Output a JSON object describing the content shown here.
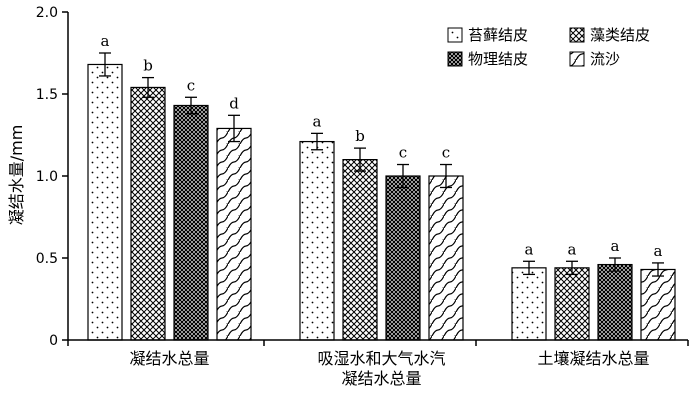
{
  "chart_data": {
    "type": "bar",
    "ylabel": "凝结水量/mm",
    "ylim": [
      0,
      2.0
    ],
    "yticks": [
      "0",
      "0.5",
      "1.0",
      "1.5",
      "2.0"
    ],
    "categories": [
      [
        "凝结水总量"
      ],
      [
        "吸湿水和大气水汽",
        "凝结水总量"
      ],
      [
        "土壤凝结水总量"
      ]
    ],
    "series": [
      {
        "name": "苔藓结皮",
        "pattern": "dots",
        "values": [
          1.68,
          1.21,
          0.44
        ],
        "errors": [
          0.07,
          0.05,
          0.04
        ],
        "labels": [
          "a",
          "a",
          "a"
        ]
      },
      {
        "name": "藻类结皮",
        "pattern": "crosshatch",
        "values": [
          1.54,
          1.1,
          0.44
        ],
        "errors": [
          0.06,
          0.07,
          0.04
        ],
        "labels": [
          "b",
          "b",
          "a"
        ]
      },
      {
        "name": "物理结皮",
        "pattern": "dense-grid",
        "values": [
          1.43,
          1.0,
          0.46
        ],
        "errors": [
          0.05,
          0.07,
          0.04
        ],
        "labels": [
          "c",
          "c",
          "a"
        ]
      },
      {
        "name": "流沙",
        "pattern": "waves",
        "values": [
          1.29,
          1.0,
          0.43
        ],
        "errors": [
          0.08,
          0.07,
          0.04
        ],
        "labels": [
          "d",
          "c",
          "a"
        ]
      }
    ],
    "legend": {
      "position": "top-right",
      "columns": 2
    },
    "grid": false,
    "colors": {
      "bar_stroke": "#000000",
      "background": "#ffffff"
    }
  }
}
